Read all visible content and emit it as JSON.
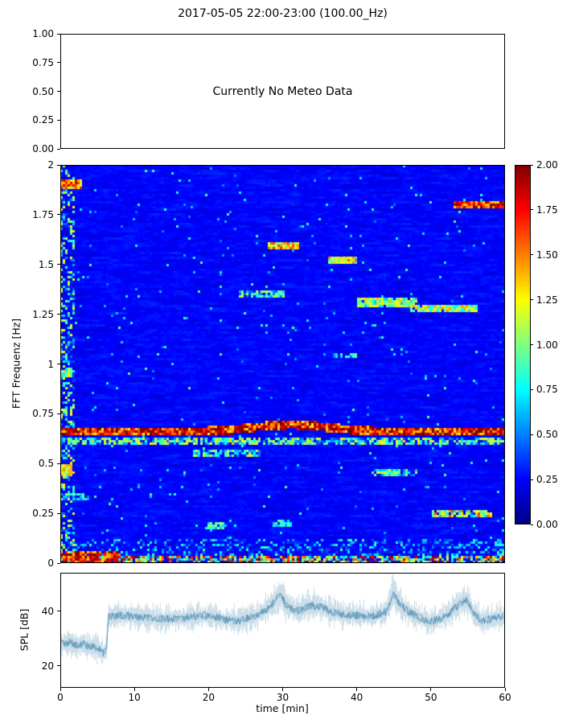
{
  "figure": {
    "title": "2017-05-05 22:00-23:00 (100.00_Hz)"
  },
  "meteo_panel": {
    "annotation": "Currently No Meteo Data",
    "yticks": [
      "1.00",
      "0.75",
      "0.50",
      "0.25",
      "0.00"
    ]
  },
  "spectrogram_panel": {
    "ylabel": "FFT Frequenz [Hz]",
    "yticks": [
      "2",
      "1.75",
      "1.5",
      "1.25",
      "1",
      "0.75",
      "0.5",
      "0.25",
      "0"
    ]
  },
  "colorbar": {
    "ticks": [
      "2.00",
      "1.75",
      "1.50",
      "1.25",
      "1.00",
      "0.75",
      "0.50",
      "0.25",
      "0.00"
    ],
    "vmin": 0,
    "vmax": 2,
    "colormap": "jet"
  },
  "spl_panel": {
    "ylabel": "SPL [dB]",
    "xlabel": "time [min]",
    "yticks": [
      "40",
      "20"
    ],
    "xticks": [
      "0",
      "10",
      "20",
      "30",
      "40",
      "50",
      "60"
    ]
  },
  "chart_data": [
    {
      "type": "line",
      "panel": "meteo",
      "title": "2017-05-05 22:00-23:00 (100.00_Hz)",
      "annotation": "Currently No Meteo Data",
      "ylim": [
        0,
        1
      ],
      "yticks": [
        1,
        0.75,
        0.5,
        0.25,
        0
      ],
      "series": []
    },
    {
      "type": "heatmap",
      "panel": "spectrogram",
      "ylabel": "FFT Frequenz [Hz]",
      "xlim": [
        0,
        60
      ],
      "ylim": [
        0,
        2
      ],
      "yticks": [
        2,
        1.75,
        1.5,
        1.25,
        1,
        0.75,
        0.5,
        0.25,
        0
      ],
      "colormap": "jet",
      "clim": [
        0,
        2
      ],
      "cticks": [
        2,
        1.75,
        1.5,
        1.25,
        1,
        0.75,
        0.5,
        0.25,
        0
      ],
      "background": {
        "base": 0.12,
        "noise": 0.26,
        "speckle_prob": 0.013
      },
      "features": [
        {
          "name": "main-band",
          "t": [
            0,
            60
          ],
          "center": 0.66,
          "halfwidth": 0.022,
          "bump_t": 31,
          "bump_amp": 0.035,
          "bump_w": 5,
          "val": 1.75,
          "jitter": 0.5,
          "prob": 1
        },
        {
          "name": "sub-band",
          "t": [
            0,
            60
          ],
          "f": [
            0.595,
            0.625
          ],
          "val": 0.85,
          "jitter": 0.5,
          "prob": 0.75
        },
        {
          "name": "low-band",
          "t": [
            0,
            60
          ],
          "f": [
            0.0,
            0.035
          ],
          "val": 1.3,
          "jitter": 0.7,
          "prob": 0.65
        },
        {
          "name": "low-burst-start",
          "t": [
            0,
            8
          ],
          "f": [
            0.0,
            0.06
          ],
          "val": 1.7,
          "jitter": 0.4,
          "prob": 0.9
        },
        {
          "name": "left-edge-speckle",
          "t": [
            0,
            1.8
          ],
          "f": [
            0,
            2
          ],
          "val": 0.7,
          "jitter": 0.6,
          "prob": 0.45
        },
        {
          "name": "band-1.9",
          "t": [
            0,
            3
          ],
          "f": [
            1.88,
            1.93
          ],
          "val": 1.5,
          "jitter": 0.4,
          "prob": 1
        },
        {
          "name": "band-1.8",
          "t": [
            53,
            60
          ],
          "f": [
            1.78,
            1.82
          ],
          "val": 1.7,
          "jitter": 0.4,
          "prob": 1
        },
        {
          "name": "band-1.6",
          "t": [
            28,
            32
          ],
          "f": [
            1.58,
            1.615
          ],
          "val": 1.3,
          "jitter": 0.4,
          "prob": 1
        },
        {
          "name": "band-1.52",
          "t": [
            36,
            40
          ],
          "f": [
            1.5,
            1.54
          ],
          "val": 1.2,
          "jitter": 0.4,
          "prob": 1
        },
        {
          "name": "band-1.35",
          "t": [
            24,
            30
          ],
          "f": [
            1.33,
            1.37
          ],
          "val": 0.75,
          "jitter": 0.4,
          "prob": 0.8
        },
        {
          "name": "band-1.31",
          "t": [
            40,
            48
          ],
          "f": [
            1.29,
            1.33
          ],
          "val": 1.0,
          "jitter": 0.4,
          "prob": 0.9
        },
        {
          "name": "band-1.28",
          "t": [
            47,
            56
          ],
          "f": [
            1.26,
            1.3
          ],
          "val": 1.1,
          "jitter": 0.4,
          "prob": 0.9
        },
        {
          "name": "band-0.55",
          "t": [
            18,
            27
          ],
          "f": [
            0.53,
            0.57
          ],
          "val": 0.8,
          "jitter": 0.4,
          "prob": 0.7
        },
        {
          "name": "band-0.45",
          "t": [
            42,
            48
          ],
          "f": [
            0.44,
            0.47
          ],
          "val": 0.8,
          "jitter": 0.4,
          "prob": 0.7
        },
        {
          "name": "band-0.25",
          "t": [
            50,
            58
          ],
          "f": [
            0.235,
            0.265
          ],
          "val": 1.15,
          "jitter": 0.5,
          "prob": 0.8
        },
        {
          "name": "band-0.95-left",
          "t": [
            0,
            1.5
          ],
          "f": [
            0.93,
            0.97
          ],
          "val": 1.0,
          "jitter": 0.3,
          "prob": 1
        },
        {
          "name": "band-0.46-left",
          "t": [
            0,
            1.5
          ],
          "f": [
            0.44,
            0.5
          ],
          "val": 1.2,
          "jitter": 0.3,
          "prob": 1
        },
        {
          "name": "patch-0.19",
          "t": [
            19.5,
            22
          ],
          "f": [
            0.17,
            0.2
          ],
          "val": 0.9,
          "jitter": 0.3,
          "prob": 0.8
        },
        {
          "name": "patch-0.20",
          "t": [
            28.5,
            31
          ],
          "f": [
            0.18,
            0.215
          ],
          "val": 0.8,
          "jitter": 0.3,
          "prob": 0.8
        },
        {
          "name": "patch-1.05",
          "t": [
            36.5,
            40
          ],
          "f": [
            1.03,
            1.06
          ],
          "val": 0.7,
          "jitter": 0.3,
          "prob": 0.7
        },
        {
          "name": "patch-0.33",
          "t": [
            0,
            4
          ],
          "f": [
            0.31,
            0.35
          ],
          "val": 0.8,
          "jitter": 0.3,
          "prob": 0.7
        },
        {
          "name": "low-noise-floor",
          "t": [
            0,
            60
          ],
          "f": [
            0.0,
            0.12
          ],
          "val": 0.45,
          "jitter": 0.45,
          "prob": 0.4
        }
      ]
    },
    {
      "type": "line",
      "panel": "spl",
      "xlabel": "time [min]",
      "ylabel": "SPL [dB]",
      "xlim": [
        0,
        60
      ],
      "ylim": [
        12,
        54
      ],
      "xticks": [
        0,
        10,
        20,
        30,
        40,
        50,
        60
      ],
      "yticks": [
        40,
        20
      ],
      "color": "#4789b0",
      "noise_spread_db": 3.5,
      "envelope": [
        [
          0,
          28
        ],
        [
          1,
          28.5
        ],
        [
          2,
          27.5
        ],
        [
          3,
          28
        ],
        [
          4,
          27
        ],
        [
          5,
          26.5
        ],
        [
          5.6,
          24.5
        ],
        [
          6.1,
          25
        ],
        [
          6.35,
          38
        ],
        [
          8,
          38.5
        ],
        [
          10,
          38
        ],
        [
          12,
          37.5
        ],
        [
          14,
          37
        ],
        [
          16,
          37.5
        ],
        [
          18,
          38
        ],
        [
          20,
          38.5
        ],
        [
          22,
          37
        ],
        [
          24,
          36.5
        ],
        [
          26,
          38
        ],
        [
          27.5,
          40
        ],
        [
          29,
          44
        ],
        [
          29.8,
          46
        ],
        [
          30.5,
          42
        ],
        [
          32,
          40
        ],
        [
          33.5,
          42
        ],
        [
          35,
          42
        ],
        [
          36.5,
          40
        ],
        [
          38,
          39
        ],
        [
          40,
          38.5
        ],
        [
          42,
          38
        ],
        [
          44,
          40
        ],
        [
          45,
          46.5
        ],
        [
          45.8,
          43
        ],
        [
          47,
          40
        ],
        [
          48,
          38.5
        ],
        [
          50,
          36
        ],
        [
          51,
          37
        ],
        [
          52,
          38
        ],
        [
          53,
          40
        ],
        [
          54,
          43
        ],
        [
          55,
          44
        ],
        [
          56,
          39
        ],
        [
          57,
          36.5
        ],
        [
          58,
          37
        ],
        [
          59,
          38
        ],
        [
          60,
          38
        ]
      ]
    }
  ]
}
